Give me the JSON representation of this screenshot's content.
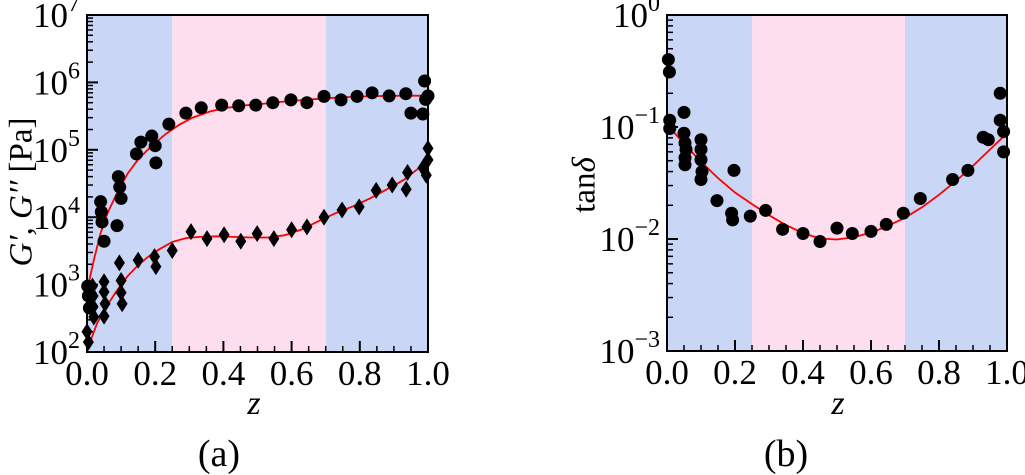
{
  "figure": {
    "background_color": "#ffffff",
    "accent_line_color": "#ff0000",
    "marker_color": "#000000",
    "region_blue_color": "#c9d6f6",
    "region_pink_color": "#fcdeee"
  },
  "chart_data": [
    {
      "type": "scatter",
      "panel": "a",
      "caption": "(a)",
      "title": "",
      "xlabel": "z",
      "ylabel": {
        "italic": "G′, G′′",
        "upright": " [Pa]"
      },
      "x_axis": {
        "min": 0.0,
        "max": 1.0,
        "major_ticks": [
          0.0,
          0.2,
          0.4,
          0.6,
          0.8,
          1.0
        ],
        "tick_labels": [
          "0.0",
          "0.2",
          "0.4",
          "0.6",
          "0.8",
          "1.0"
        ],
        "minor_step": 0.05
      },
      "y_axis": {
        "scale": "log",
        "min_exp": 2,
        "max_exp": 7,
        "tick_exponents": [
          2,
          3,
          4,
          5,
          6,
          7
        ],
        "base_label": "10"
      },
      "regions": [
        {
          "start": 0.0,
          "end": 0.25,
          "color": "#c9d6f6",
          "name": "blue-left"
        },
        {
          "start": 0.25,
          "end": 0.7,
          "color": "#fcdeee",
          "name": "pink-middle"
        },
        {
          "start": 0.7,
          "end": 1.0,
          "color": "#c9d6f6",
          "name": "blue-right"
        }
      ],
      "series": [
        {
          "name": "G-prime-storage-modulus",
          "marker": "circle",
          "color": "#000000",
          "points": [
            [
              0.002,
              950
            ],
            [
              0.004,
              680
            ],
            [
              0.007,
              450
            ],
            [
              0.04,
              17000
            ],
            [
              0.042,
              12000
            ],
            [
              0.044,
              8500
            ],
            [
              0.05,
              4400
            ],
            [
              0.088,
              7500
            ],
            [
              0.092,
              40000
            ],
            [
              0.096,
              28000
            ],
            [
              0.1,
              19000
            ],
            [
              0.145,
              87000
            ],
            [
              0.158,
              130000
            ],
            [
              0.19,
              160000
            ],
            [
              0.2,
              115000
            ],
            [
              0.202,
              64000
            ],
            [
              0.24,
              240000
            ],
            [
              0.29,
              350000
            ],
            [
              0.335,
              420000
            ],
            [
              0.395,
              460000
            ],
            [
              0.445,
              450000
            ],
            [
              0.495,
              460000
            ],
            [
              0.545,
              500000
            ],
            [
              0.598,
              550000
            ],
            [
              0.645,
              500000
            ],
            [
              0.695,
              620000
            ],
            [
              0.745,
              550000
            ],
            [
              0.792,
              620000
            ],
            [
              0.836,
              700000
            ],
            [
              0.886,
              630000
            ],
            [
              0.935,
              680000
            ],
            [
              0.95,
              350000
            ],
            [
              0.985,
              340000
            ],
            [
              0.99,
              1050000
            ],
            [
              0.993,
              560000
            ],
            [
              1.0,
              630000
            ]
          ]
        },
        {
          "name": "G-double-prime-loss-modulus",
          "marker": "diamond",
          "color": "#000000",
          "points": [
            [
              0.0,
              200
            ],
            [
              0.004,
              140
            ],
            [
              0.016,
              950
            ],
            [
              0.018,
              680
            ],
            [
              0.018,
              470
            ],
            [
              0.02,
              330
            ],
            [
              0.05,
              1100
            ],
            [
              0.05,
              780
            ],
            [
              0.053,
              520
            ],
            [
              0.05,
              340
            ],
            [
              0.095,
              2100
            ],
            [
              0.1,
              1150
            ],
            [
              0.1,
              760
            ],
            [
              0.103,
              520
            ],
            [
              0.15,
              2300
            ],
            [
              0.198,
              2600
            ],
            [
              0.202,
              1850
            ],
            [
              0.25,
              3200
            ],
            [
              0.305,
              6100
            ],
            [
              0.352,
              4800
            ],
            [
              0.402,
              5500
            ],
            [
              0.451,
              4400
            ],
            [
              0.499,
              5700
            ],
            [
              0.548,
              4800
            ],
            [
              0.6,
              6500
            ],
            [
              0.645,
              7200
            ],
            [
              0.695,
              10000
            ],
            [
              0.748,
              12800
            ],
            [
              0.798,
              14200
            ],
            [
              0.848,
              25000
            ],
            [
              0.895,
              30000
            ],
            [
              0.936,
              26000
            ],
            [
              0.94,
              46000
            ],
            [
              0.985,
              54000
            ],
            [
              0.995,
              42000
            ],
            [
              1.0,
              71000
            ],
            [
              1.0,
              105000
            ]
          ]
        }
      ],
      "fit_lines": [
        {
          "series": "G-prime",
          "color": "#ff0000",
          "points": [
            [
              0,
              800
            ],
            [
              0.02,
              2300
            ],
            [
              0.04,
              5800
            ],
            [
              0.06,
              11500
            ],
            [
              0.09,
              24000
            ],
            [
              0.12,
              45000
            ],
            [
              0.15,
              72000
            ],
            [
              0.19,
              115000
            ],
            [
              0.23,
              170000
            ],
            [
              0.27,
              235000
            ],
            [
              0.31,
              300000
            ],
            [
              0.36,
              370000
            ],
            [
              0.41,
              420000
            ],
            [
              0.46,
              455000
            ],
            [
              0.52,
              485000
            ],
            [
              0.58,
              520000
            ],
            [
              0.64,
              550000
            ],
            [
              0.7,
              580000
            ],
            [
              0.76,
              605000
            ],
            [
              0.82,
              620000
            ],
            [
              0.88,
              630000
            ],
            [
              0.94,
              635000
            ],
            [
              1.0,
              635000
            ]
          ]
        },
        {
          "series": "G-double-prime",
          "color": "#ff0000",
          "points": [
            [
              0,
              105
            ],
            [
              0.03,
              270
            ],
            [
              0.06,
              500
            ],
            [
              0.09,
              850
            ],
            [
              0.12,
              1350
            ],
            [
              0.15,
              1950
            ],
            [
              0.18,
              2600
            ],
            [
              0.21,
              3300
            ],
            [
              0.25,
              4300
            ],
            [
              0.29,
              4900
            ],
            [
              0.33,
              5100
            ],
            [
              0.38,
              5200
            ],
            [
              0.43,
              5100
            ],
            [
              0.48,
              5000
            ],
            [
              0.53,
              5000
            ],
            [
              0.58,
              5400
            ],
            [
              0.63,
              6600
            ],
            [
              0.68,
              8800
            ],
            [
              0.73,
              11500
            ],
            [
              0.78,
              14500
            ],
            [
              0.83,
              19000
            ],
            [
              0.88,
              26000
            ],
            [
              0.93,
              36000
            ],
            [
              0.97,
              52000
            ],
            [
              1.0,
              80000
            ]
          ]
        }
      ]
    },
    {
      "type": "scatter",
      "panel": "b",
      "caption": "(b)",
      "title": "",
      "xlabel": "z",
      "ylabel": {
        "upright": "tan",
        "italic": "δ"
      },
      "x_axis": {
        "min": 0.0,
        "max": 1.0,
        "major_ticks": [
          0.0,
          0.2,
          0.4,
          0.6,
          0.8,
          1.0
        ],
        "tick_labels": [
          "0.0",
          "0.2",
          "0.4",
          "0.6",
          "0.8",
          "1.0"
        ],
        "minor_step": 0.05
      },
      "y_axis": {
        "scale": "log",
        "min_exp": -3,
        "max_exp": 0,
        "tick_exponents": [
          -3,
          -2,
          -1,
          0
        ],
        "base_label": "10"
      },
      "regions": [
        {
          "start": 0.0,
          "end": 0.25,
          "color": "#c9d6f6",
          "name": "blue-left"
        },
        {
          "start": 0.25,
          "end": 0.7,
          "color": "#fcdeee",
          "name": "pink-middle"
        },
        {
          "start": 0.7,
          "end": 1.0,
          "color": "#c9d6f6",
          "name": "blue-right"
        }
      ],
      "series": [
        {
          "name": "tan-delta",
          "marker": "circle",
          "color": "#000000",
          "points": [
            [
              0.004,
              0.4
            ],
            [
              0.007,
              0.31
            ],
            [
              0.008,
              0.115
            ],
            [
              0.008,
              0.097
            ],
            [
              0.05,
              0.135
            ],
            [
              0.05,
              0.088
            ],
            [
              0.053,
              0.072
            ],
            [
              0.056,
              0.063
            ],
            [
              0.053,
              0.053
            ],
            [
              0.053,
              0.046
            ],
            [
              0.1,
              0.077
            ],
            [
              0.1,
              0.063
            ],
            [
              0.1,
              0.051
            ],
            [
              0.103,
              0.04
            ],
            [
              0.1,
              0.034
            ],
            [
              0.147,
              0.022
            ],
            [
              0.197,
              0.041
            ],
            [
              0.19,
              0.017
            ],
            [
              0.193,
              0.0148
            ],
            [
              0.245,
              0.016
            ],
            [
              0.29,
              0.018
            ],
            [
              0.34,
              0.0122
            ],
            [
              0.4,
              0.0112
            ],
            [
              0.45,
              0.0095
            ],
            [
              0.5,
              0.0125
            ],
            [
              0.545,
              0.0112
            ],
            [
              0.6,
              0.0117
            ],
            [
              0.645,
              0.0135
            ],
            [
              0.695,
              0.017
            ],
            [
              0.745,
              0.023
            ],
            [
              0.84,
              0.034
            ],
            [
              0.885,
              0.041
            ],
            [
              0.93,
              0.081
            ],
            [
              0.945,
              0.077
            ],
            [
              0.98,
              0.2
            ],
            [
              0.98,
              0.115
            ],
            [
              0.99,
              0.091
            ],
            [
              0.99,
              0.06
            ]
          ]
        }
      ],
      "fit_lines": [
        {
          "series": "tan-delta",
          "color": "#ff0000",
          "points": [
            [
              0,
              0.105
            ],
            [
              0.05,
              0.071
            ],
            [
              0.1,
              0.049
            ],
            [
              0.15,
              0.035
            ],
            [
              0.2,
              0.026
            ],
            [
              0.25,
              0.0205
            ],
            [
              0.3,
              0.0163
            ],
            [
              0.35,
              0.0133
            ],
            [
              0.4,
              0.0113
            ],
            [
              0.45,
              0.0101
            ],
            [
              0.5,
              0.0099
            ],
            [
              0.55,
              0.0104
            ],
            [
              0.6,
              0.0114
            ],
            [
              0.65,
              0.0131
            ],
            [
              0.7,
              0.0155
            ],
            [
              0.75,
              0.0192
            ],
            [
              0.8,
              0.0248
            ],
            [
              0.85,
              0.033
            ],
            [
              0.9,
              0.045
            ],
            [
              0.95,
              0.063
            ],
            [
              1.0,
              0.088
            ]
          ]
        }
      ]
    }
  ]
}
